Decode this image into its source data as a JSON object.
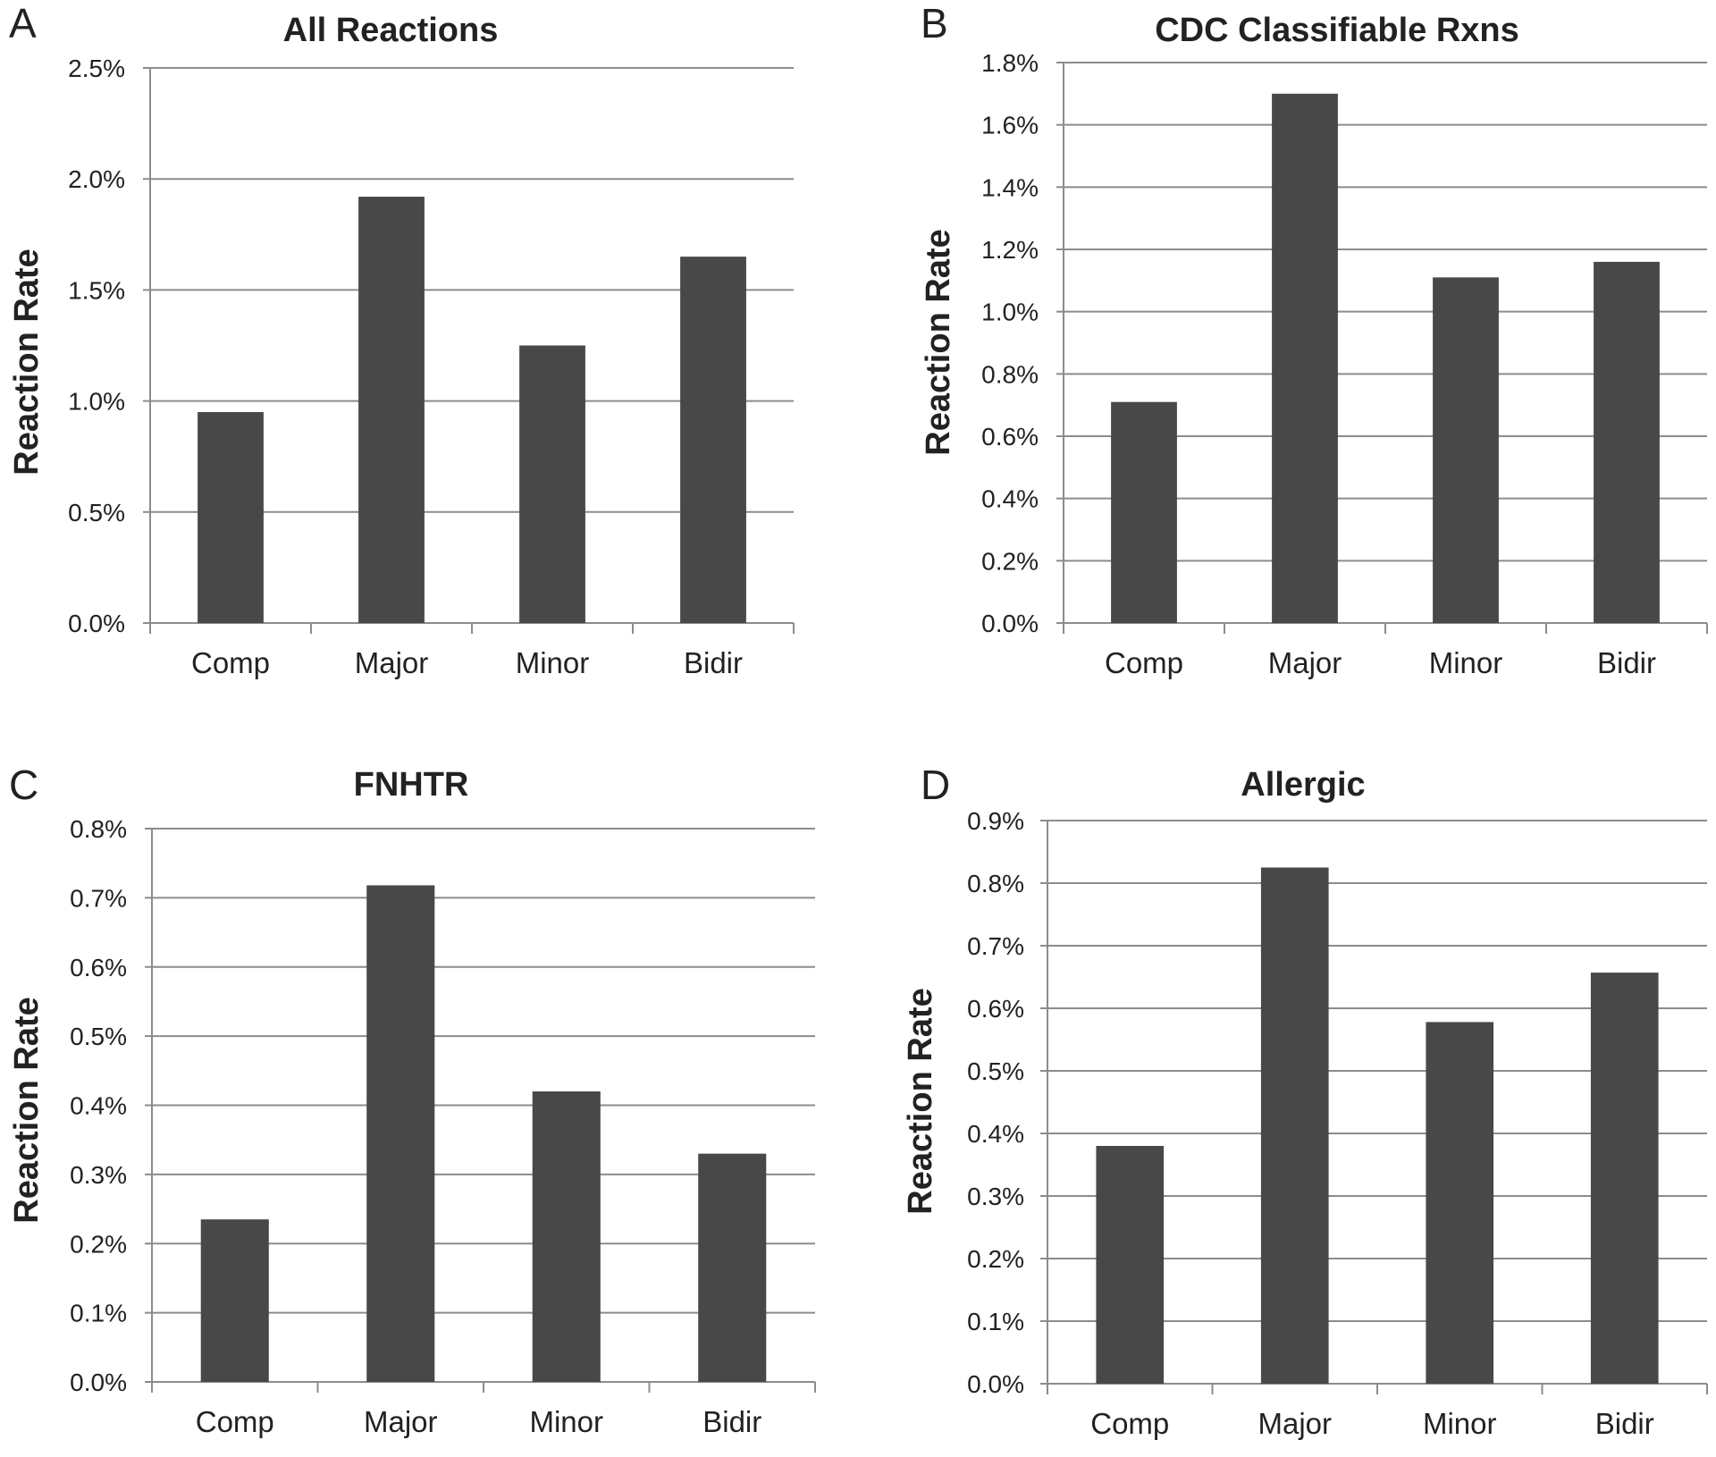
{
  "colors": {
    "bar": "#484848",
    "grid": "#8c8c8c",
    "text": "#222222"
  },
  "chart_data": [
    {
      "panel": "A",
      "type": "bar",
      "title": "All Reactions",
      "xlabel": "",
      "ylabel": "Reaction Rate",
      "categories": [
        "Comp",
        "Major",
        "Minor",
        "Bidir"
      ],
      "values": [
        0.95,
        1.92,
        1.25,
        1.65
      ],
      "ylim": [
        0,
        2.5
      ],
      "yticks": [
        "0.0%",
        "0.5%",
        "1.0%",
        "1.5%",
        "2.0%",
        "2.5%"
      ],
      "grid": true
    },
    {
      "panel": "B",
      "type": "bar",
      "title": "CDC Classifiable Rxns",
      "xlabel": "",
      "ylabel": "Reaction Rate",
      "categories": [
        "Comp",
        "Major",
        "Minor",
        "Bidir"
      ],
      "values": [
        0.71,
        1.7,
        1.11,
        1.16
      ],
      "ylim": [
        0,
        1.8
      ],
      "yticks": [
        "0.0%",
        "0.2%",
        "0.4%",
        "0.6%",
        "0.8%",
        "1.0%",
        "1.2%",
        "1.4%",
        "1.6%",
        "1.8%"
      ],
      "grid": true
    },
    {
      "panel": "C",
      "type": "bar",
      "title": "FNHTR",
      "xlabel": "",
      "ylabel": "Reaction Rate",
      "categories": [
        "Comp",
        "Major",
        "Minor",
        "Bidir"
      ],
      "values": [
        0.235,
        0.718,
        0.42,
        0.33
      ],
      "ylim": [
        0,
        0.8
      ],
      "yticks": [
        "0.0%",
        "0.1%",
        "0.2%",
        "0.3%",
        "0.4%",
        "0.5%",
        "0.6%",
        "0.7%",
        "0.8%"
      ],
      "grid": true
    },
    {
      "panel": "D",
      "type": "bar",
      "title": "Allergic",
      "xlabel": "",
      "ylabel": "Reaction Rate",
      "categories": [
        "Comp",
        "Major",
        "Minor",
        "Bidir"
      ],
      "values": [
        0.38,
        0.825,
        0.578,
        0.657
      ],
      "ylim": [
        0,
        0.9
      ],
      "yticks": [
        "0.0%",
        "0.1%",
        "0.2%",
        "0.3%",
        "0.4%",
        "0.5%",
        "0.6%",
        "0.7%",
        "0.8%",
        "0.9%"
      ],
      "grid": true
    }
  ]
}
